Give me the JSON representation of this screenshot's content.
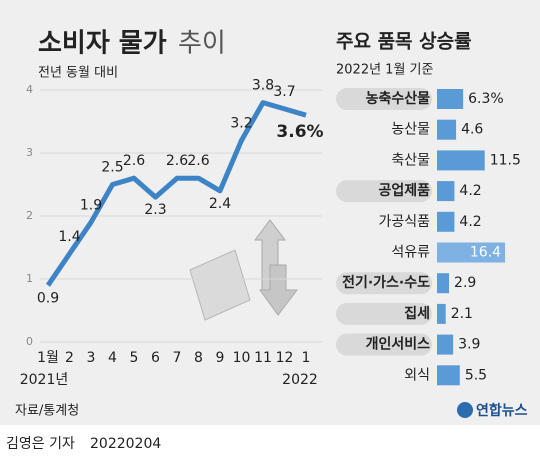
{
  "chart_data": [
    {
      "type": "line",
      "title": "소비자 물가",
      "title_suffix": "추이",
      "subtitle": "전년 동월 대비",
      "categories": [
        "1월",
        "2",
        "3",
        "4",
        "5",
        "6",
        "7",
        "8",
        "9",
        "10",
        "11",
        "12",
        "1"
      ],
      "period_labels": [
        "2021년",
        "2022"
      ],
      "values": [
        0.9,
        1.4,
        1.9,
        2.5,
        2.6,
        2.3,
        2.6,
        2.6,
        2.4,
        3.2,
        3.8,
        3.7,
        3.6
      ],
      "value_labels": [
        "0.9",
        "1.4",
        "1.9",
        "2.5",
        "2.6",
        "2.3",
        "2.6",
        "2.6",
        "2.4",
        "3.2",
        "3.8",
        "3.7",
        "3.6%"
      ],
      "color": "#3d84c6",
      "ylim": [
        0,
        4
      ],
      "yticks": [
        0,
        1,
        2,
        3,
        4
      ],
      "grid": true
    },
    {
      "type": "hbar",
      "title": "주요 품목 상승률",
      "subtitle": "2022년 1월 기준",
      "categories": [
        "농축수산물",
        "농산물",
        "축산물",
        "공업제품",
        "가공식품",
        "석유류",
        "전기·가스·수도",
        "집세",
        "개인서비스",
        "외식"
      ],
      "values": [
        6.3,
        4.6,
        11.5,
        4.2,
        4.2,
        16.4,
        2.9,
        2.1,
        3.9,
        5.5
      ],
      "value_labels": [
        "6.3%",
        "4.6",
        "11.5",
        "4.2",
        "4.2",
        "16.4",
        "2.9",
        "2.1",
        "3.9",
        "5.5"
      ],
      "group_headers": [
        true,
        false,
        false,
        true,
        false,
        false,
        true,
        true,
        true,
        false
      ],
      "highlight": [
        false,
        false,
        false,
        false,
        false,
        true,
        false,
        false,
        false,
        false
      ],
      "color": "#5b9bd5",
      "highlight_color": "#7fb2e3"
    }
  ],
  "source": "자료/통계청",
  "logo": "연합뉴스",
  "byline": "김영은 기자",
  "date": "20220204"
}
